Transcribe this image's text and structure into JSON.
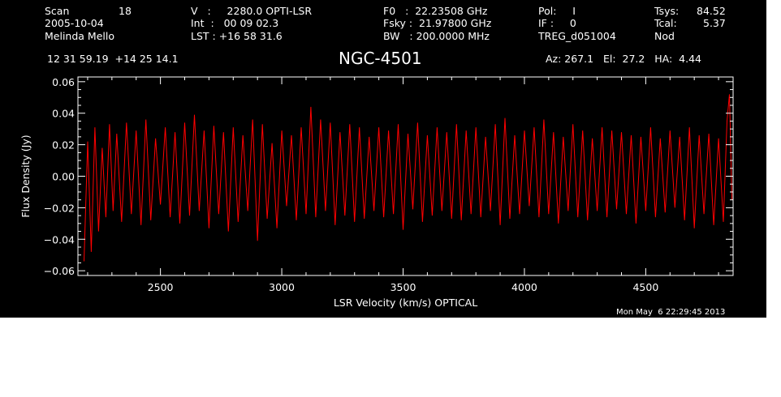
{
  "header": {
    "scan_label": "Scan",
    "scan_number": "18",
    "date": "2005-10-04",
    "observer": "Melinda Mello",
    "coords": "12 31 59.19  +14 25 14.1",
    "v_line": "V   :     2280.0 OPTI-LSR",
    "int_line": "Int  :   00 09 02.3",
    "lst_line": "LST : +16 58 31.6",
    "f0_line": "F0   :  22.23508 GHz",
    "fsky_line": "Fsky :  21.97800 GHz",
    "bw_line": "BW   : 200.0000 MHz",
    "pol_line": "Pol:     I",
    "if_line": "IF :     0",
    "treg": "TREG_d051004",
    "tsys_label": "Tsys:",
    "tsys_value": "84.52",
    "tcal_label": "Tcal:",
    "tcal_value": "5.37",
    "nod": "Nod",
    "object": "NGC-4501",
    "az_line": "Az: 267.1   El:  27.2   HA:  4.44",
    "timestamp": "Mon May  6 22:29:45 2013"
  },
  "colors": {
    "background": "#000000",
    "axes": "#ffffff",
    "trace": "#ff0000"
  },
  "chart_data": {
    "type": "line",
    "xlabel": "LSR Velocity (km/s) OPTICAL",
    "ylabel": "Flux Density (Jy)",
    "xlim": [
      2160,
      4860
    ],
    "ylim": [
      -0.063,
      0.063
    ],
    "x_ticks": [
      {
        "value": 2500,
        "label": "2500"
      },
      {
        "value": 3000,
        "label": "3000"
      },
      {
        "value": 3500,
        "label": "3500"
      },
      {
        "value": 4000,
        "label": "4000"
      },
      {
        "value": 4500,
        "label": "4500"
      }
    ],
    "y_ticks": [
      {
        "value": -0.06,
        "label": "−0.06"
      },
      {
        "value": -0.04,
        "label": "−0.04"
      },
      {
        "value": -0.02,
        "label": "−0.02"
      },
      {
        "value": 0.0,
        "label": "0.00"
      },
      {
        "value": 0.02,
        "label": "0.02"
      },
      {
        "value": 0.04,
        "label": "0.04"
      },
      {
        "value": 0.06,
        "label": "0.06"
      }
    ],
    "series": [
      {
        "color": "#ff0000",
        "x": [
          2185,
          2200,
          2215,
          2230,
          2245,
          2260,
          2275,
          2290,
          2305,
          2320,
          2340,
          2360,
          2380,
          2400,
          2420,
          2440,
          2460,
          2480,
          2500,
          2520,
          2540,
          2560,
          2580,
          2600,
          2620,
          2640,
          2660,
          2680,
          2700,
          2720,
          2740,
          2760,
          2780,
          2800,
          2820,
          2840,
          2860,
          2880,
          2900,
          2920,
          2940,
          2960,
          2980,
          3000,
          3020,
          3040,
          3060,
          3080,
          3100,
          3120,
          3140,
          3160,
          3180,
          3200,
          3220,
          3240,
          3260,
          3280,
          3300,
          3320,
          3340,
          3360,
          3380,
          3400,
          3420,
          3440,
          3460,
          3480,
          3500,
          3520,
          3540,
          3560,
          3580,
          3600,
          3620,
          3640,
          3660,
          3680,
          3700,
          3720,
          3740,
          3760,
          3780,
          3800,
          3820,
          3840,
          3860,
          3880,
          3900,
          3920,
          3940,
          3960,
          3980,
          4000,
          4020,
          4040,
          4060,
          4080,
          4100,
          4120,
          4140,
          4160,
          4180,
          4200,
          4220,
          4240,
          4260,
          4280,
          4300,
          4320,
          4340,
          4360,
          4380,
          4400,
          4420,
          4440,
          4460,
          4480,
          4500,
          4520,
          4540,
          4560,
          4580,
          4600,
          4620,
          4640,
          4660,
          4680,
          4700,
          4720,
          4740,
          4760,
          4780,
          4800,
          4820,
          4835,
          4845,
          4855
        ],
        "y": [
          -0.054,
          0.022,
          -0.048,
          0.031,
          -0.035,
          0.018,
          -0.026,
          0.033,
          -0.022,
          0.027,
          -0.029,
          0.034,
          -0.024,
          0.029,
          -0.031,
          0.036,
          -0.028,
          0.024,
          -0.018,
          0.031,
          -0.026,
          0.028,
          -0.03,
          0.034,
          -0.025,
          0.039,
          -0.022,
          0.029,
          -0.033,
          0.032,
          -0.024,
          0.028,
          -0.035,
          0.031,
          -0.029,
          0.026,
          -0.022,
          0.036,
          -0.041,
          0.033,
          -0.027,
          0.021,
          -0.033,
          0.029,
          -0.019,
          0.026,
          -0.028,
          0.031,
          -0.024,
          0.044,
          -0.026,
          0.036,
          -0.022,
          0.034,
          -0.031,
          0.028,
          -0.025,
          0.033,
          -0.029,
          0.031,
          -0.027,
          0.025,
          -0.022,
          0.031,
          -0.026,
          0.029,
          -0.024,
          0.033,
          -0.034,
          0.027,
          -0.021,
          0.034,
          -0.029,
          0.026,
          -0.025,
          0.031,
          -0.022,
          0.028,
          -0.027,
          0.033,
          -0.028,
          0.029,
          -0.024,
          0.031,
          -0.026,
          0.025,
          -0.022,
          0.033,
          -0.031,
          0.037,
          -0.027,
          0.026,
          -0.024,
          0.029,
          -0.019,
          0.031,
          -0.026,
          0.036,
          -0.024,
          0.028,
          -0.03,
          0.025,
          -0.022,
          0.033,
          -0.026,
          0.029,
          -0.028,
          0.024,
          -0.022,
          0.031,
          -0.026,
          0.029,
          -0.021,
          0.028,
          -0.024,
          0.026,
          -0.03,
          0.025,
          -0.022,
          0.031,
          -0.026,
          0.024,
          -0.023,
          0.029,
          -0.02,
          0.025,
          -0.028,
          0.031,
          -0.033,
          0.026,
          -0.024,
          0.027,
          -0.031,
          0.024,
          -0.029,
          0.035,
          0.052,
          -0.015
        ]
      }
    ]
  }
}
